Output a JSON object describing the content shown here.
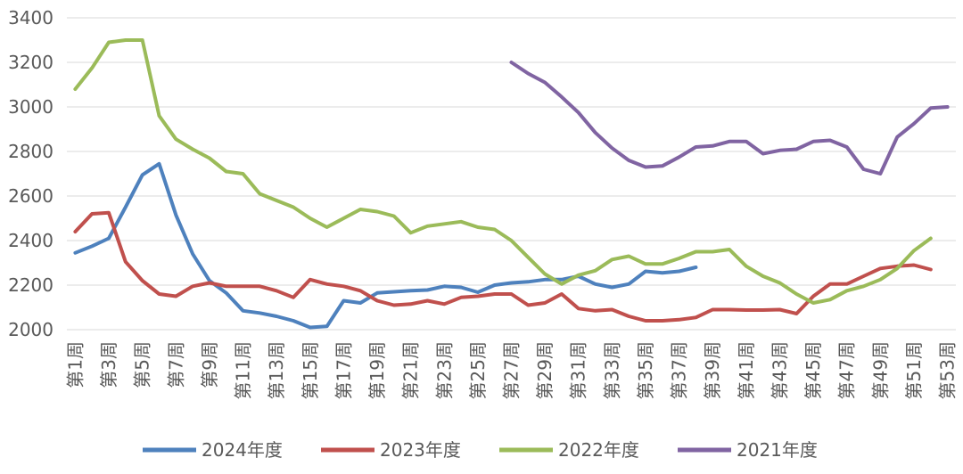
{
  "chart_data": {
    "type": "line",
    "title": "",
    "xlabel": "",
    "ylabel": "",
    "ylim": [
      2000,
      3400
    ],
    "yticks": [
      2000,
      2200,
      2400,
      2600,
      2800,
      3000,
      3200,
      3400
    ],
    "grid": "horizontal",
    "legend_position": "bottom",
    "x_tick_labels": [
      "第1周",
      "第3周",
      "第5周",
      "第7周",
      "第9周",
      "第11周",
      "第13周",
      "第15周",
      "第17周",
      "第19周",
      "第21周",
      "第23周",
      "第25周",
      "第27周",
      "第29周",
      "第31周",
      "第33周",
      "第35周",
      "第37周",
      "第39周",
      "第41周",
      "第43周",
      "第45周",
      "第47周",
      "第49周",
      "第51周",
      "第53周"
    ],
    "x_weeks_total": 53,
    "series": [
      {
        "name": "2024年度",
        "color": "#4E81BD",
        "start_week": 1,
        "values": [
          2345,
          2375,
          2410,
          2550,
          2695,
          2745,
          2515,
          2340,
          2220,
          2165,
          2085,
          2075,
          2060,
          2040,
          2010,
          2015,
          2130,
          2120,
          2165,
          2170,
          2175,
          2178,
          2195,
          2190,
          2168,
          2200,
          2210,
          2215,
          2225,
          2225,
          2240,
          2205,
          2190,
          2205,
          2262,
          2255,
          2262,
          2280
        ]
      },
      {
        "name": "2023年度",
        "color": "#C0504D",
        "start_week": 1,
        "values": [
          2440,
          2520,
          2525,
          2305,
          2220,
          2160,
          2150,
          2195,
          2210,
          2195,
          2195,
          2195,
          2175,
          2145,
          2225,
          2205,
          2195,
          2175,
          2130,
          2110,
          2115,
          2130,
          2115,
          2145,
          2150,
          2160,
          2160,
          2110,
          2120,
          2160,
          2095,
          2085,
          2090,
          2060,
          2040,
          2040,
          2045,
          2055,
          2090,
          2090,
          2088,
          2088,
          2090,
          2072,
          2150,
          2205,
          2205,
          2240,
          2275,
          2285,
          2290,
          2270
        ]
      },
      {
        "name": "2022年度",
        "color": "#9BBB59",
        "start_week": 1,
        "values": [
          3080,
          3175,
          3290,
          3300,
          3300,
          2960,
          2855,
          2810,
          2770,
          2710,
          2700,
          2610,
          2580,
          2550,
          2500,
          2460,
          2500,
          2540,
          2530,
          2510,
          2435,
          2465,
          2475,
          2485,
          2460,
          2450,
          2400,
          2325,
          2250,
          2205,
          2245,
          2265,
          2315,
          2330,
          2295,
          2295,
          2320,
          2350,
          2350,
          2360,
          2285,
          2240,
          2210,
          2160,
          2120,
          2135,
          2175,
          2195,
          2225,
          2275,
          2355,
          2410
        ]
      },
      {
        "name": "2021年度",
        "color": "#8064A2",
        "start_week": 27,
        "values": [
          3200,
          3150,
          3110,
          3045,
          2975,
          2885,
          2815,
          2760,
          2730,
          2735,
          2775,
          2820,
          2825,
          2845,
          2845,
          2790,
          2805,
          2810,
          2845,
          2850,
          2820,
          2720,
          2700,
          2865,
          2925,
          2995,
          3000
        ]
      }
    ]
  }
}
